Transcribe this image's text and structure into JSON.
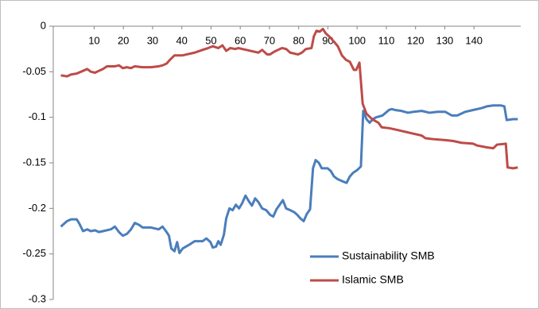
{
  "chart_data": {
    "type": "line",
    "xlim": [
      -4,
      156
    ],
    "xticks": [
      10,
      20,
      30,
      40,
      50,
      60,
      70,
      80,
      90,
      100,
      110,
      120,
      130,
      140
    ],
    "ylim": [
      -0.3,
      0
    ],
    "yticks": [
      0,
      -0.05,
      -0.1,
      -0.15,
      -0.2,
      -0.25,
      -0.3
    ],
    "x_axis_position": "top",
    "grid": false,
    "legend": "lower right",
    "series": [
      {
        "name": "Sustainability SMB",
        "color": "#4a7ebb",
        "x": [
          -1.4,
          0.7,
          2.1,
          4.0,
          4.8,
          6.2,
          7.6,
          8.9,
          10.3,
          11.6,
          13.0,
          15.7,
          17.1,
          18.5,
          19.8,
          21.2,
          22.6,
          23.9,
          25.3,
          26.6,
          29.4,
          32.1,
          33.4,
          34.8,
          35.6,
          36.4,
          37.5,
          38.4,
          39.2,
          40.3,
          43.0,
          44.4,
          47.1,
          48.4,
          49.8,
          50.6,
          51.7,
          52.5,
          53.3,
          54.4,
          55.2,
          56.3,
          57.4,
          58.5,
          59.6,
          60.7,
          61.8,
          62.9,
          64.0,
          65.1,
          66.2,
          67.5,
          68.9,
          70.2,
          71.3,
          72.4,
          73.5,
          74.6,
          75.7,
          77.1,
          78.4,
          79.5,
          80.6,
          81.7,
          82.8,
          83.9,
          84.9,
          85.8,
          86.9,
          87.9,
          89.9,
          91.0,
          92.1,
          93.4,
          94.8,
          96.4,
          97.5,
          98.6,
          100.0,
          101.3,
          102.1,
          103.2,
          104.3,
          105.4,
          106.5,
          107.6,
          108.7,
          109.8,
          110.9,
          111.9,
          113.0,
          115.2,
          117.4,
          119.3,
          122.1,
          124.8,
          127.5,
          130.2,
          132.4,
          134.3,
          137.0,
          139.7,
          142.5,
          144.4,
          146.6,
          149.3,
          150.4,
          151.2,
          153.4,
          155.0
        ],
        "values": [
          -0.22,
          -0.214,
          -0.212,
          -0.212,
          -0.216,
          -0.225,
          -0.223,
          -0.225,
          -0.224,
          -0.226,
          -0.225,
          -0.223,
          -0.22,
          -0.226,
          -0.23,
          -0.228,
          -0.223,
          -0.216,
          -0.218,
          -0.221,
          -0.221,
          -0.223,
          -0.22,
          -0.226,
          -0.23,
          -0.244,
          -0.247,
          -0.237,
          -0.249,
          -0.244,
          -0.239,
          -0.236,
          -0.236,
          -0.233,
          -0.237,
          -0.243,
          -0.242,
          -0.236,
          -0.24,
          -0.229,
          -0.211,
          -0.2,
          -0.202,
          -0.196,
          -0.2,
          -0.194,
          -0.186,
          -0.192,
          -0.197,
          -0.189,
          -0.193,
          -0.2,
          -0.202,
          -0.207,
          -0.209,
          -0.201,
          -0.196,
          -0.191,
          -0.2,
          -0.202,
          -0.204,
          -0.207,
          -0.211,
          -0.214,
          -0.206,
          -0.201,
          -0.156,
          -0.147,
          -0.15,
          -0.156,
          -0.156,
          -0.159,
          -0.165,
          -0.168,
          -0.17,
          -0.172,
          -0.165,
          -0.161,
          -0.158,
          -0.154,
          -0.093,
          -0.102,
          -0.106,
          -0.102,
          -0.1,
          -0.099,
          -0.098,
          -0.095,
          -0.092,
          -0.091,
          -0.092,
          -0.093,
          -0.095,
          -0.094,
          -0.093,
          -0.095,
          -0.094,
          -0.094,
          -0.098,
          -0.098,
          -0.094,
          -0.092,
          -0.09,
          -0.088,
          -0.087,
          -0.087,
          -0.088,
          -0.103,
          -0.102,
          -0.102
        ]
      },
      {
        "name": "Islamic SMB",
        "color": "#be4b48",
        "x": [
          -1.4,
          0.7,
          2.1,
          4.0,
          6.2,
          7.6,
          8.9,
          10.3,
          11.6,
          13.0,
          14.4,
          17.1,
          18.5,
          19.8,
          21.2,
          22.6,
          23.9,
          26.6,
          29.4,
          32.1,
          33.4,
          34.8,
          36.2,
          37.5,
          40.3,
          41.6,
          44.4,
          47.1,
          49.0,
          50.6,
          52.5,
          53.9,
          55.2,
          56.6,
          58.3,
          59.3,
          62.1,
          63.4,
          66.2,
          67.5,
          69.2,
          70.2,
          71.6,
          72.9,
          74.3,
          75.7,
          77.1,
          79.8,
          81.1,
          82.5,
          84.4,
          85.2,
          86.1,
          87.2,
          88.3,
          89.3,
          90.7,
          92.1,
          93.4,
          94.8,
          96.2,
          97.5,
          98.9,
          99.7,
          100.8,
          101.9,
          103.2,
          105.1,
          107.3,
          108.4,
          111.1,
          113.9,
          116.6,
          119.3,
          122.1,
          123.4,
          126.1,
          130.2,
          132.9,
          135.7,
          139.7,
          141.1,
          144.4,
          146.6,
          147.9,
          150.9,
          151.5,
          153.4,
          155.0
        ],
        "values": [
          -0.054,
          -0.055,
          -0.053,
          -0.052,
          -0.049,
          -0.047,
          -0.05,
          -0.051,
          -0.049,
          -0.047,
          -0.044,
          -0.044,
          -0.043,
          -0.046,
          -0.045,
          -0.046,
          -0.044,
          -0.045,
          -0.045,
          -0.044,
          -0.043,
          -0.041,
          -0.036,
          -0.032,
          -0.032,
          -0.031,
          -0.029,
          -0.026,
          -0.024,
          -0.022,
          -0.024,
          -0.021,
          -0.027,
          -0.024,
          -0.025,
          -0.024,
          -0.026,
          -0.027,
          -0.029,
          -0.026,
          -0.031,
          -0.031,
          -0.028,
          -0.026,
          -0.024,
          -0.025,
          -0.029,
          -0.031,
          -0.029,
          -0.025,
          -0.024,
          -0.011,
          -0.005,
          -0.006,
          -0.003,
          -0.008,
          -0.012,
          -0.017,
          -0.022,
          -0.032,
          -0.037,
          -0.039,
          -0.048,
          -0.048,
          -0.04,
          -0.085,
          -0.096,
          -0.102,
          -0.106,
          -0.111,
          -0.112,
          -0.114,
          -0.116,
          -0.118,
          -0.12,
          -0.123,
          -0.124,
          -0.125,
          -0.126,
          -0.128,
          -0.129,
          -0.131,
          -0.133,
          -0.134,
          -0.13,
          -0.129,
          -0.155,
          -0.156,
          -0.155
        ]
      }
    ]
  }
}
